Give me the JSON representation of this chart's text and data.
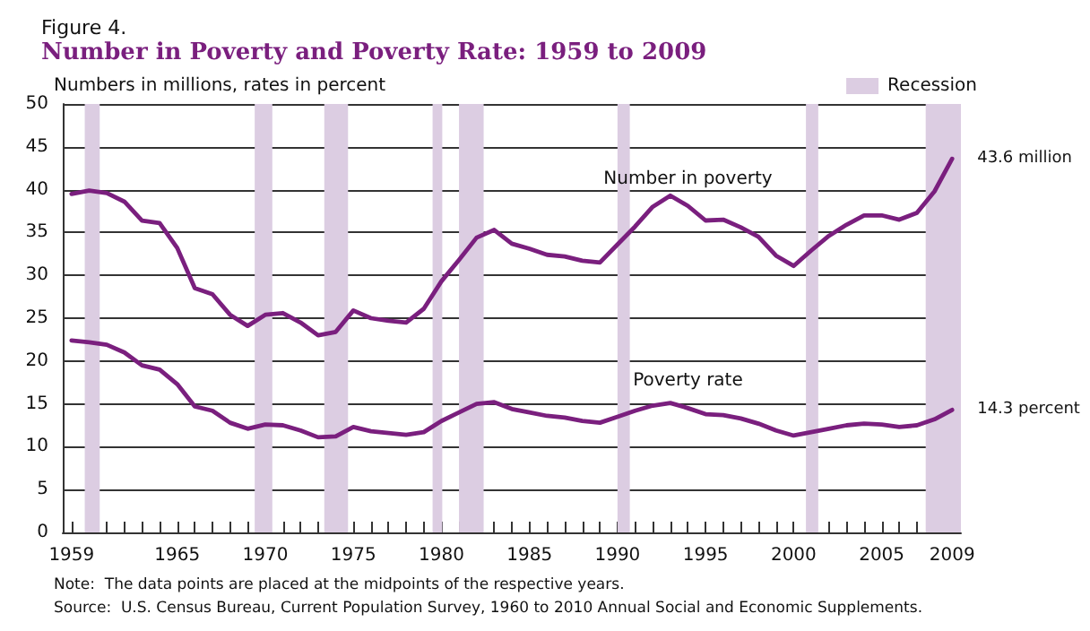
{
  "chart_data": {
    "type": "line",
    "subtitle": "Figure 4.",
    "title": "Number in Poverty and Poverty Rate: 1959 to 2009",
    "ylabel": "Numbers in millions, rates in percent",
    "x": [
      1959,
      1960,
      1961,
      1962,
      1963,
      1964,
      1965,
      1966,
      1967,
      1968,
      1969,
      1970,
      1971,
      1972,
      1973,
      1974,
      1975,
      1976,
      1977,
      1978,
      1979,
      1980,
      1981,
      1982,
      1983,
      1984,
      1985,
      1986,
      1987,
      1988,
      1989,
      1990,
      1991,
      1992,
      1993,
      1994,
      1995,
      1996,
      1997,
      1998,
      1999,
      2000,
      2001,
      2002,
      2003,
      2004,
      2005,
      2006,
      2007,
      2008,
      2009
    ],
    "series": [
      {
        "name": "Number in poverty",
        "color": "#7a1f7e",
        "values": [
          39.5,
          39.9,
          39.6,
          38.6,
          36.4,
          36.1,
          33.2,
          28.5,
          27.8,
          25.4,
          24.1,
          25.4,
          25.6,
          24.5,
          23.0,
          23.4,
          25.9,
          25.0,
          24.7,
          24.5,
          26.1,
          29.3,
          31.8,
          34.4,
          35.3,
          33.7,
          33.1,
          32.4,
          32.2,
          31.7,
          31.5,
          33.6,
          35.7,
          38.0,
          39.3,
          38.1,
          36.4,
          36.5,
          35.6,
          34.5,
          32.3,
          31.1,
          32.9,
          34.6,
          35.9,
          37.0,
          37.0,
          36.5,
          37.3,
          39.8,
          43.6
        ]
      },
      {
        "name": "Poverty rate",
        "color": "#7a1f7e",
        "values": [
          22.4,
          22.2,
          21.9,
          21.0,
          19.5,
          19.0,
          17.3,
          14.7,
          14.2,
          12.8,
          12.1,
          12.6,
          12.5,
          11.9,
          11.1,
          11.2,
          12.3,
          11.8,
          11.6,
          11.4,
          11.7,
          13.0,
          14.0,
          15.0,
          15.2,
          14.4,
          14.0,
          13.6,
          13.4,
          13.0,
          12.8,
          13.5,
          14.2,
          14.8,
          15.1,
          14.5,
          13.8,
          13.7,
          13.3,
          12.7,
          11.9,
          11.3,
          11.7,
          12.1,
          12.5,
          12.7,
          12.6,
          12.3,
          12.5,
          13.2,
          14.3
        ]
      }
    ],
    "xlim": [
      1958.5,
      2009.5
    ],
    "xticks": [
      1959,
      {
        "value": 1960,
        "label": null
      },
      {
        "value": 1961,
        "label": null
      },
      {
        "value": 1962,
        "label": null
      },
      {
        "value": 1963,
        "label": null
      },
      {
        "value": 1964,
        "label": null
      },
      1965,
      {
        "value": 1966,
        "label": null
      },
      {
        "value": 1967,
        "label": null
      },
      {
        "value": 1968,
        "label": null
      },
      {
        "value": 1969,
        "label": null
      },
      1970,
      {
        "value": 1971,
        "label": null
      },
      {
        "value": 1972,
        "label": null
      },
      {
        "value": 1973,
        "label": null
      },
      {
        "value": 1974,
        "label": null
      },
      1975,
      {
        "value": 1976,
        "label": null
      },
      {
        "value": 1977,
        "label": null
      },
      {
        "value": 1978,
        "label": null
      },
      {
        "value": 1979,
        "label": null
      },
      1980,
      {
        "value": 1981,
        "label": null
      },
      {
        "value": 1982,
        "label": null
      },
      {
        "value": 1983,
        "label": null
      },
      {
        "value": 1984,
        "label": null
      },
      1985,
      {
        "value": 1986,
        "label": null
      },
      {
        "value": 1987,
        "label": null
      },
      {
        "value": 1988,
        "label": null
      },
      {
        "value": 1989,
        "label": null
      },
      1990,
      {
        "value": 1991,
        "label": null
      },
      {
        "value": 1992,
        "label": null
      },
      {
        "value": 1993,
        "label": null
      },
      {
        "value": 1994,
        "label": null
      },
      1995,
      {
        "value": 1996,
        "label": null
      },
      {
        "value": 1997,
        "label": null
      },
      {
        "value": 1998,
        "label": null
      },
      {
        "value": 1999,
        "label": null
      },
      2000,
      {
        "value": 2001,
        "label": null
      },
      {
        "value": 2002,
        "label": null
      },
      {
        "value": 2003,
        "label": null
      },
      {
        "value": 2004,
        "label": null
      },
      2005,
      {
        "value": 2006,
        "label": null
      },
      {
        "value": 2007,
        "label": null
      },
      {
        "value": 2008,
        "label": null
      },
      2009
    ],
    "ylim": [
      0,
      50
    ],
    "yticks": [
      0,
      5,
      10,
      15,
      20,
      25,
      30,
      35,
      40,
      45,
      50
    ],
    "grid": "y",
    "legend": "top right",
    "marker": "none",
    "line_style": "solid",
    "bands": [
      {
        "axis": "x",
        "from": 1959.75,
        "to": 1960.6,
        "label": "Recession",
        "color": "#dccde2"
      },
      {
        "axis": "x",
        "from": 1969.4,
        "to": 1970.4,
        "color": "#dccde2"
      },
      {
        "axis": "x",
        "from": 1973.35,
        "to": 1974.7,
        "color": "#dccde2"
      },
      {
        "axis": "x",
        "from": 1979.5,
        "to": 1980.05,
        "color": "#dccde2"
      },
      {
        "axis": "x",
        "from": 1981.0,
        "to": 1982.4,
        "color": "#dccde2"
      },
      {
        "axis": "x",
        "from": 1990.0,
        "to": 1990.7,
        "color": "#dccde2"
      },
      {
        "axis": "x",
        "from": 2000.7,
        "to": 2001.4,
        "color": "#dccde2"
      },
      {
        "axis": "x",
        "from": 2007.5,
        "to": 2009.5,
        "color": "#dccde2"
      }
    ],
    "annotations": [
      {
        "text": "43.6 million",
        "x": 2009,
        "y": 43.6
      },
      {
        "text": "14.3 percent",
        "x": 2009,
        "y": 14.3
      },
      "Note:  The data points are placed at the midpoints of the respective years.",
      "Source:  U.S. Census Bureau, Current Population Survey, 1960 to 2010 Annual Social and Economic Supplements."
    ]
  }
}
